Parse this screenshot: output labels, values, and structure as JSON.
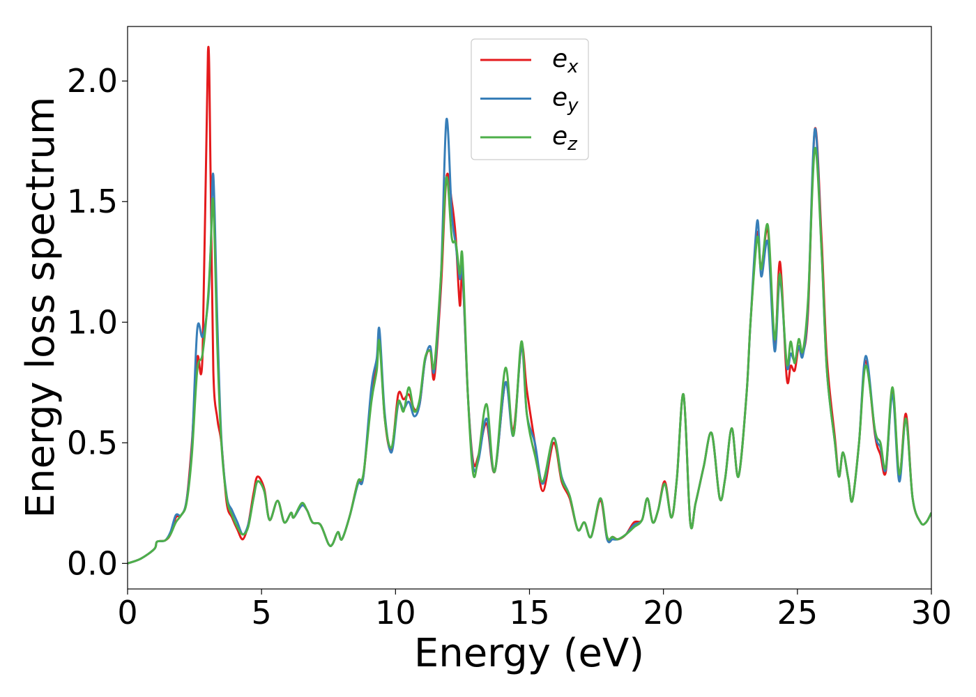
{
  "chart_data": {
    "type": "line",
    "xlabel": "Energy (eV)",
    "ylabel": "Energy loss spectrum",
    "xlim": [
      0,
      30
    ],
    "xticks": [
      0,
      5,
      10,
      15,
      20,
      25,
      30
    ],
    "ylim": [
      -0.106,
      2.226
    ],
    "yticks": [
      {
        "value": 0,
        "label": "0.0"
      },
      0.5,
      {
        "value": 1,
        "label": "1.0"
      },
      1.5,
      {
        "value": 2,
        "label": "2.0"
      }
    ],
    "grid": false,
    "legend": "upper center",
    "x": [
      0,
      0.5,
      1.0,
      1.1,
      1.4,
      1.6,
      1.8,
      2.0,
      2.2,
      2.4,
      2.6,
      2.8,
      3.0,
      3.1,
      3.2,
      3.35,
      3.5,
      3.7,
      3.9,
      4.1,
      4.3,
      4.5,
      4.7,
      4.85,
      5.1,
      5.3,
      5.6,
      5.85,
      6.1,
      6.2,
      6.5,
      6.7,
      6.9,
      7.2,
      7.5,
      7.65,
      7.85,
      8.0,
      8.3,
      8.6,
      8.8,
      9.1,
      9.3,
      9.4,
      9.6,
      9.85,
      10.1,
      10.3,
      10.5,
      10.7,
      10.9,
      11.1,
      11.3,
      11.45,
      11.7,
      11.9,
      12.1,
      12.25,
      12.4,
      12.5,
      12.7,
      12.9,
      13.1,
      13.4,
      13.7,
      14.1,
      14.4,
      14.7,
      14.9,
      15.2,
      15.5,
      15.9,
      16.2,
      16.5,
      16.8,
      17.05,
      17.3,
      17.65,
      17.9,
      18.1,
      18.3,
      18.6,
      18.9,
      19.2,
      19.4,
      19.6,
      19.8,
      20.05,
      20.3,
      20.5,
      20.75,
      21.0,
      21.2,
      21.5,
      21.8,
      22.1,
      22.3,
      22.55,
      22.8,
      23.1,
      23.25,
      23.5,
      23.65,
      23.9,
      24.15,
      24.35,
      24.6,
      24.75,
      24.9,
      25.05,
      25.2,
      25.4,
      25.65,
      25.9,
      26.1,
      26.4,
      26.55,
      26.7,
      26.9,
      27.05,
      27.3,
      27.55,
      27.9,
      28.1,
      28.3,
      28.55,
      28.8,
      29.05,
      29.3,
      29.6,
      29.8,
      30.0
    ],
    "series": [
      {
        "name": "ex",
        "color": "#e41a1c",
        "values": [
          0,
          0.02,
          0.06,
          0.09,
          0.095,
          0.12,
          0.19,
          0.2,
          0.26,
          0.5,
          0.85,
          0.87,
          2.12,
          1.6,
          0.8,
          0.6,
          0.5,
          0.25,
          0.19,
          0.14,
          0.1,
          0.16,
          0.29,
          0.36,
          0.31,
          0.18,
          0.26,
          0.17,
          0.21,
          0.19,
          0.24,
          0.22,
          0.17,
          0.16,
          0.08,
          0.08,
          0.13,
          0.1,
          0.2,
          0.34,
          0.36,
          0.7,
          0.82,
          0.95,
          0.6,
          0.47,
          0.7,
          0.68,
          0.7,
          0.64,
          0.66,
          0.84,
          0.88,
          0.77,
          1.15,
          1.6,
          1.5,
          1.35,
          1.07,
          1.2,
          0.7,
          0.42,
          0.45,
          0.58,
          0.38,
          0.75,
          0.55,
          0.9,
          0.72,
          0.5,
          0.3,
          0.5,
          0.34,
          0.27,
          0.14,
          0.17,
          0.11,
          0.26,
          0.1,
          0.11,
          0.1,
          0.12,
          0.17,
          0.18,
          0.27,
          0.17,
          0.22,
          0.34,
          0.19,
          0.35,
          0.7,
          0.17,
          0.25,
          0.4,
          0.54,
          0.27,
          0.35,
          0.56,
          0.36,
          0.7,
          1.0,
          1.37,
          1.22,
          1.38,
          0.9,
          1.25,
          0.77,
          0.82,
          0.8,
          0.9,
          0.87,
          1.05,
          1.8,
          1.35,
          0.85,
          0.52,
          0.36,
          0.46,
          0.35,
          0.26,
          0.5,
          0.84,
          0.53,
          0.45,
          0.38,
          0.72,
          0.36,
          0.62,
          0.27,
          0.17,
          0.17,
          0.21
        ]
      },
      {
        "name": "ey",
        "color": "#377eb8",
        "values": [
          0,
          0.02,
          0.06,
          0.09,
          0.095,
          0.13,
          0.2,
          0.2,
          0.26,
          0.48,
          0.97,
          0.94,
          1.08,
          1.3,
          1.61,
          1.0,
          0.52,
          0.28,
          0.22,
          0.17,
          0.12,
          0.16,
          0.27,
          0.34,
          0.3,
          0.18,
          0.26,
          0.17,
          0.21,
          0.19,
          0.24,
          0.22,
          0.17,
          0.16,
          0.08,
          0.08,
          0.13,
          0.1,
          0.2,
          0.33,
          0.36,
          0.73,
          0.85,
          0.97,
          0.62,
          0.46,
          0.66,
          0.64,
          0.67,
          0.61,
          0.66,
          0.84,
          0.9,
          0.8,
          1.2,
          1.84,
          1.45,
          1.32,
          1.18,
          1.22,
          0.7,
          0.4,
          0.43,
          0.6,
          0.38,
          0.75,
          0.53,
          0.9,
          0.62,
          0.5,
          0.33,
          0.52,
          0.36,
          0.28,
          0.14,
          0.17,
          0.11,
          0.27,
          0.1,
          0.1,
          0.1,
          0.12,
          0.16,
          0.18,
          0.27,
          0.17,
          0.22,
          0.33,
          0.19,
          0.35,
          0.7,
          0.17,
          0.25,
          0.4,
          0.54,
          0.27,
          0.35,
          0.56,
          0.36,
          0.7,
          1.0,
          1.42,
          1.19,
          1.33,
          0.88,
          1.18,
          0.82,
          0.87,
          0.84,
          0.9,
          0.86,
          1.08,
          1.8,
          1.3,
          0.8,
          0.5,
          0.36,
          0.46,
          0.35,
          0.26,
          0.5,
          0.86,
          0.54,
          0.48,
          0.39,
          0.7,
          0.34,
          0.6,
          0.27,
          0.17,
          0.17,
          0.21
        ]
      },
      {
        "name": "ez",
        "color": "#4daf4a",
        "values": [
          0,
          0.02,
          0.06,
          0.09,
          0.095,
          0.12,
          0.17,
          0.2,
          0.25,
          0.45,
          0.8,
          0.87,
          1.1,
          1.3,
          1.5,
          0.9,
          0.5,
          0.27,
          0.2,
          0.15,
          0.12,
          0.15,
          0.27,
          0.34,
          0.3,
          0.18,
          0.26,
          0.17,
          0.21,
          0.19,
          0.25,
          0.22,
          0.17,
          0.16,
          0.08,
          0.08,
          0.13,
          0.1,
          0.2,
          0.34,
          0.37,
          0.67,
          0.8,
          0.92,
          0.6,
          0.48,
          0.67,
          0.63,
          0.73,
          0.63,
          0.68,
          0.85,
          0.88,
          0.82,
          1.2,
          1.6,
          1.35,
          1.33,
          1.2,
          1.27,
          0.7,
          0.37,
          0.45,
          0.66,
          0.38,
          0.81,
          0.53,
          0.92,
          0.62,
          0.45,
          0.34,
          0.52,
          0.35,
          0.28,
          0.14,
          0.17,
          0.11,
          0.27,
          0.11,
          0.11,
          0.1,
          0.12,
          0.15,
          0.18,
          0.27,
          0.17,
          0.22,
          0.33,
          0.19,
          0.35,
          0.7,
          0.17,
          0.25,
          0.4,
          0.54,
          0.27,
          0.35,
          0.56,
          0.36,
          0.7,
          1.0,
          1.35,
          1.22,
          1.4,
          0.93,
          1.2,
          0.83,
          0.92,
          0.83,
          0.93,
          0.88,
          1.1,
          1.72,
          1.3,
          0.8,
          0.5,
          0.36,
          0.46,
          0.35,
          0.26,
          0.5,
          0.82,
          0.55,
          0.5,
          0.4,
          0.73,
          0.37,
          0.6,
          0.27,
          0.17,
          0.17,
          0.21
        ]
      }
    ]
  }
}
